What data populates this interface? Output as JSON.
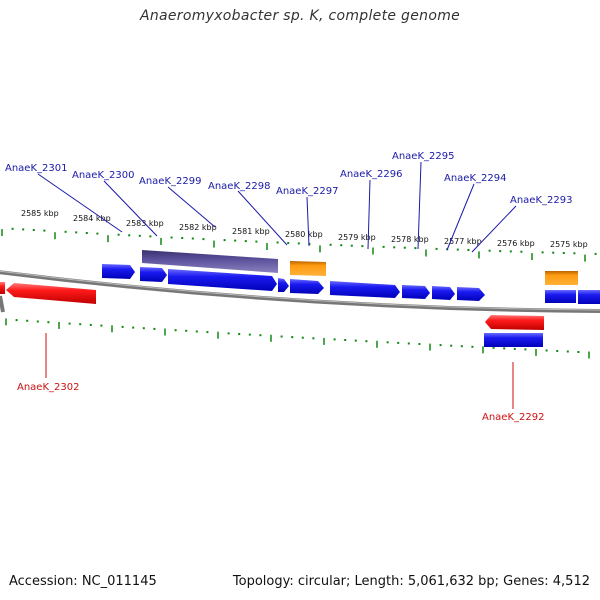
{
  "title": "Anaeromyxobacter sp. K, complete genome",
  "footer": {
    "accession": "Accession: NC_011145",
    "summary": "Topology: circular; Length: 5,061,632 bp; Genes: 4,512"
  },
  "colors": {
    "forward_gene": "#1010e0",
    "reverse_gene": "#e01010",
    "rna_gene": "#ff9900",
    "pseudo_gene": "#4a3f8c",
    "backbone": "#888888",
    "tick": "#118811",
    "forward_label": "#1a1aa8",
    "reverse_label": "#cc1111"
  },
  "scale_ticks": [
    {
      "label": "2585 kbp"
    },
    {
      "label": "2584 kbp"
    },
    {
      "label": "2583 kbp"
    },
    {
      "label": "2582 kbp"
    },
    {
      "label": "2581 kbp"
    },
    {
      "label": "2580 kbp"
    },
    {
      "label": "2579 kbp"
    },
    {
      "label": "2578 kbp"
    },
    {
      "label": "2577 kbp"
    },
    {
      "label": "2576 kbp"
    },
    {
      "label": "2575 kbp"
    }
  ],
  "gene_labels": {
    "forward": [
      {
        "name": "AnaeK_2301"
      },
      {
        "name": "AnaeK_2300"
      },
      {
        "name": "AnaeK_2299"
      },
      {
        "name": "AnaeK_2298"
      },
      {
        "name": "AnaeK_2297"
      },
      {
        "name": "AnaeK_2296"
      },
      {
        "name": "AnaeK_2295"
      },
      {
        "name": "AnaeK_2294"
      },
      {
        "name": "AnaeK_2293"
      }
    ],
    "reverse": [
      {
        "name": "AnaeK_2302"
      },
      {
        "name": "AnaeK_2292"
      }
    ]
  }
}
